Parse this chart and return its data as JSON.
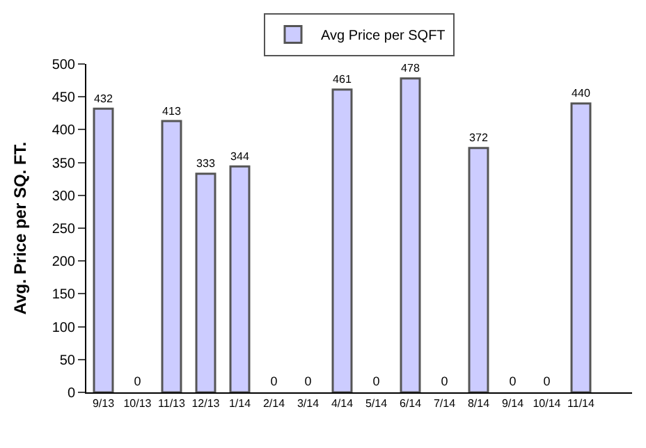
{
  "chart_data": {
    "type": "bar",
    "ylabel": "Avg. Price per SQ. FT.",
    "categories": [
      "9/13",
      "10/13",
      "11/13",
      "12/13",
      "1/14",
      "2/14",
      "3/14",
      "4/14",
      "5/14",
      "6/14",
      "7/14",
      "8/14",
      "9/14",
      "10/14",
      "11/14"
    ],
    "series": [
      {
        "name": "Avg Price per SQFT",
        "color": "#ccccff",
        "values": [
          432,
          0,
          413,
          333,
          344,
          0,
          0,
          461,
          0,
          478,
          0,
          372,
          0,
          0,
          440
        ]
      }
    ],
    "ylim": [
      0,
      500
    ],
    "yticks": [
      0,
      50,
      100,
      150,
      200,
      250,
      300,
      350,
      400,
      450,
      500
    ],
    "data_labels": true,
    "legend": "top"
  }
}
